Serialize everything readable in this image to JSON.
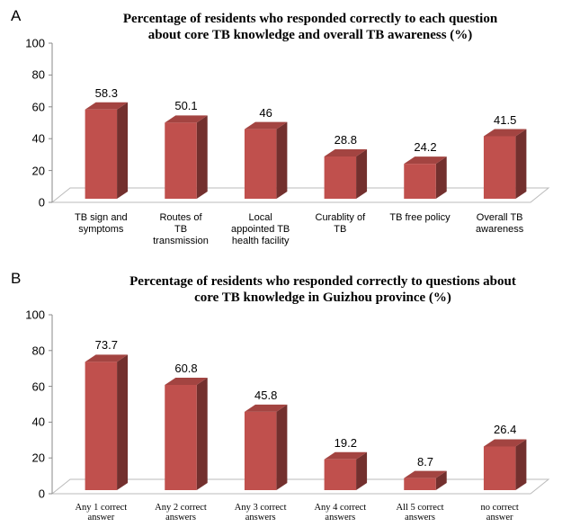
{
  "chart_data": [
    {
      "type": "bar3d",
      "panel": "A",
      "title": "Percentage of residents who responded correctly to each question\nabout core TB knowledge and overall TB awareness (%)",
      "categories": [
        "TB sign and\nsymptoms",
        "Routes of\nTB\ntransmission",
        "Local\nappointed TB\nhealth facility",
        "Curablity of\nTB",
        "TB free policy",
        "Overall TB\nawareness"
      ],
      "values": [
        58.3,
        50.1,
        46,
        28.8,
        24.2,
        41.5
      ],
      "color": "#c0504d",
      "ylim": [
        0,
        100
      ],
      "yticks": [
        0,
        20,
        40,
        60,
        80,
        100
      ]
    },
    {
      "type": "bar3d",
      "panel": "B",
      "title": "Percentage of residents who responded correctly to questions about\ncore TB knowledge in Guizhou province (%)",
      "categories": [
        "Any 1 correct\nanswer",
        "Any 2 correct\nanswers",
        "Any 3 correct\nanswers",
        "Any 4 correct\nanswers",
        "All 5 correct\nanswers",
        "no correct\nanswer"
      ],
      "values": [
        73.7,
        60.8,
        45.8,
        19.2,
        8.7,
        26.4
      ],
      "color": "#c0504d",
      "ylim": [
        0,
        100
      ],
      "yticks": [
        0,
        20,
        40,
        60,
        80,
        100
      ]
    }
  ]
}
